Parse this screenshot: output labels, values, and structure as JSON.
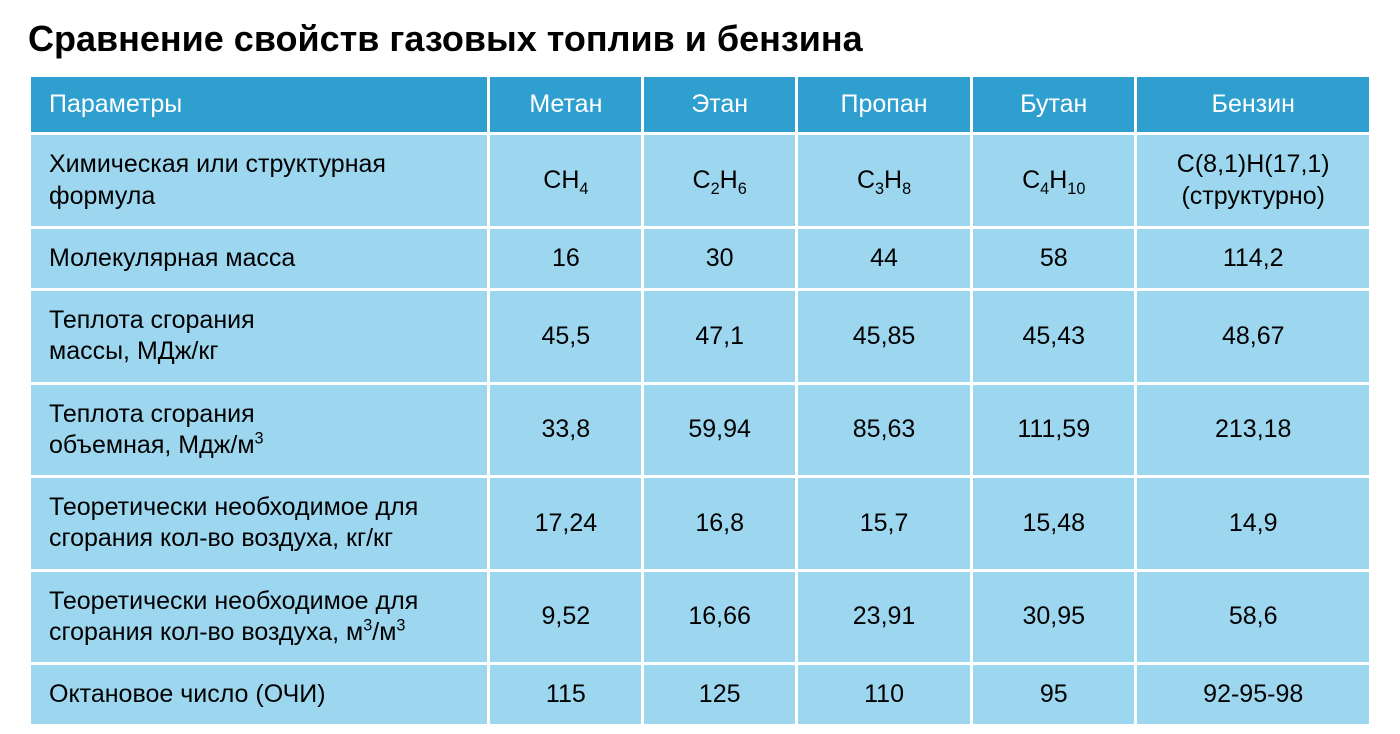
{
  "title": "Сравнение свойств газовых топлив и бензина",
  "colors": {
    "header_bg": "#2f9fd0",
    "cell_bg": "#9dd7ef",
    "header_text": "#ffffff",
    "cell_text": "#000000",
    "title_text": "#000000",
    "page_bg": "#ffffff"
  },
  "columns": [
    "Параметры",
    "Метан",
    "Этан",
    "Пропан",
    "Бутан",
    "Бензин"
  ],
  "column_widths_pct": [
    34.5,
    11.4,
    11.4,
    13,
    12.2,
    17.5
  ],
  "font_sizes_pt": {
    "title": 27,
    "cell": 19
  },
  "rows": [
    {
      "param": "Химическая  или структурная формула",
      "cells_html": [
        "CH<sub>4</sub>",
        "C<sub>2</sub>H<sub>6</sub>",
        "C<sub>3</sub>H<sub>8</sub>",
        "C<sub>4</sub>H<sub>10</sub>",
        "C(8,1)H(17,1)<br>(структурно)"
      ]
    },
    {
      "param": "Молекулярная масса",
      "cells_html": [
        "16",
        "30",
        "44",
        "58",
        "114,2"
      ]
    },
    {
      "param_html": "Теплота сгорания<br>массы, МДж/кг",
      "cells_html": [
        "45,5",
        "47,1",
        "45,85",
        "45,43",
        "48,67"
      ]
    },
    {
      "param_html": "Теплота сгорания<br>объемная, Мдж/м<sup>3</sup>",
      "cells_html": [
        "33,8",
        "59,94",
        "85,63",
        "111,59",
        "213,18"
      ]
    },
    {
      "param_html": "Теоретически необходимое для<br>сгорания кол-во воздуха, кг/кг",
      "cells_html": [
        "17,24",
        "16,8",
        "15,7",
        "15,48",
        "14,9"
      ]
    },
    {
      "param_html": "Теоретически необходимое для<br>сгорания кол-во воздуха, м<sup>3</sup>/м<sup>3</sup>",
      "cells_html": [
        "9,52",
        "16,66",
        "23,91",
        "30,95",
        "58,6"
      ]
    },
    {
      "param": "Октановое число (ОЧИ)",
      "cells_html": [
        "115",
        "125",
        "110",
        "95",
        "92-95-98"
      ]
    }
  ]
}
